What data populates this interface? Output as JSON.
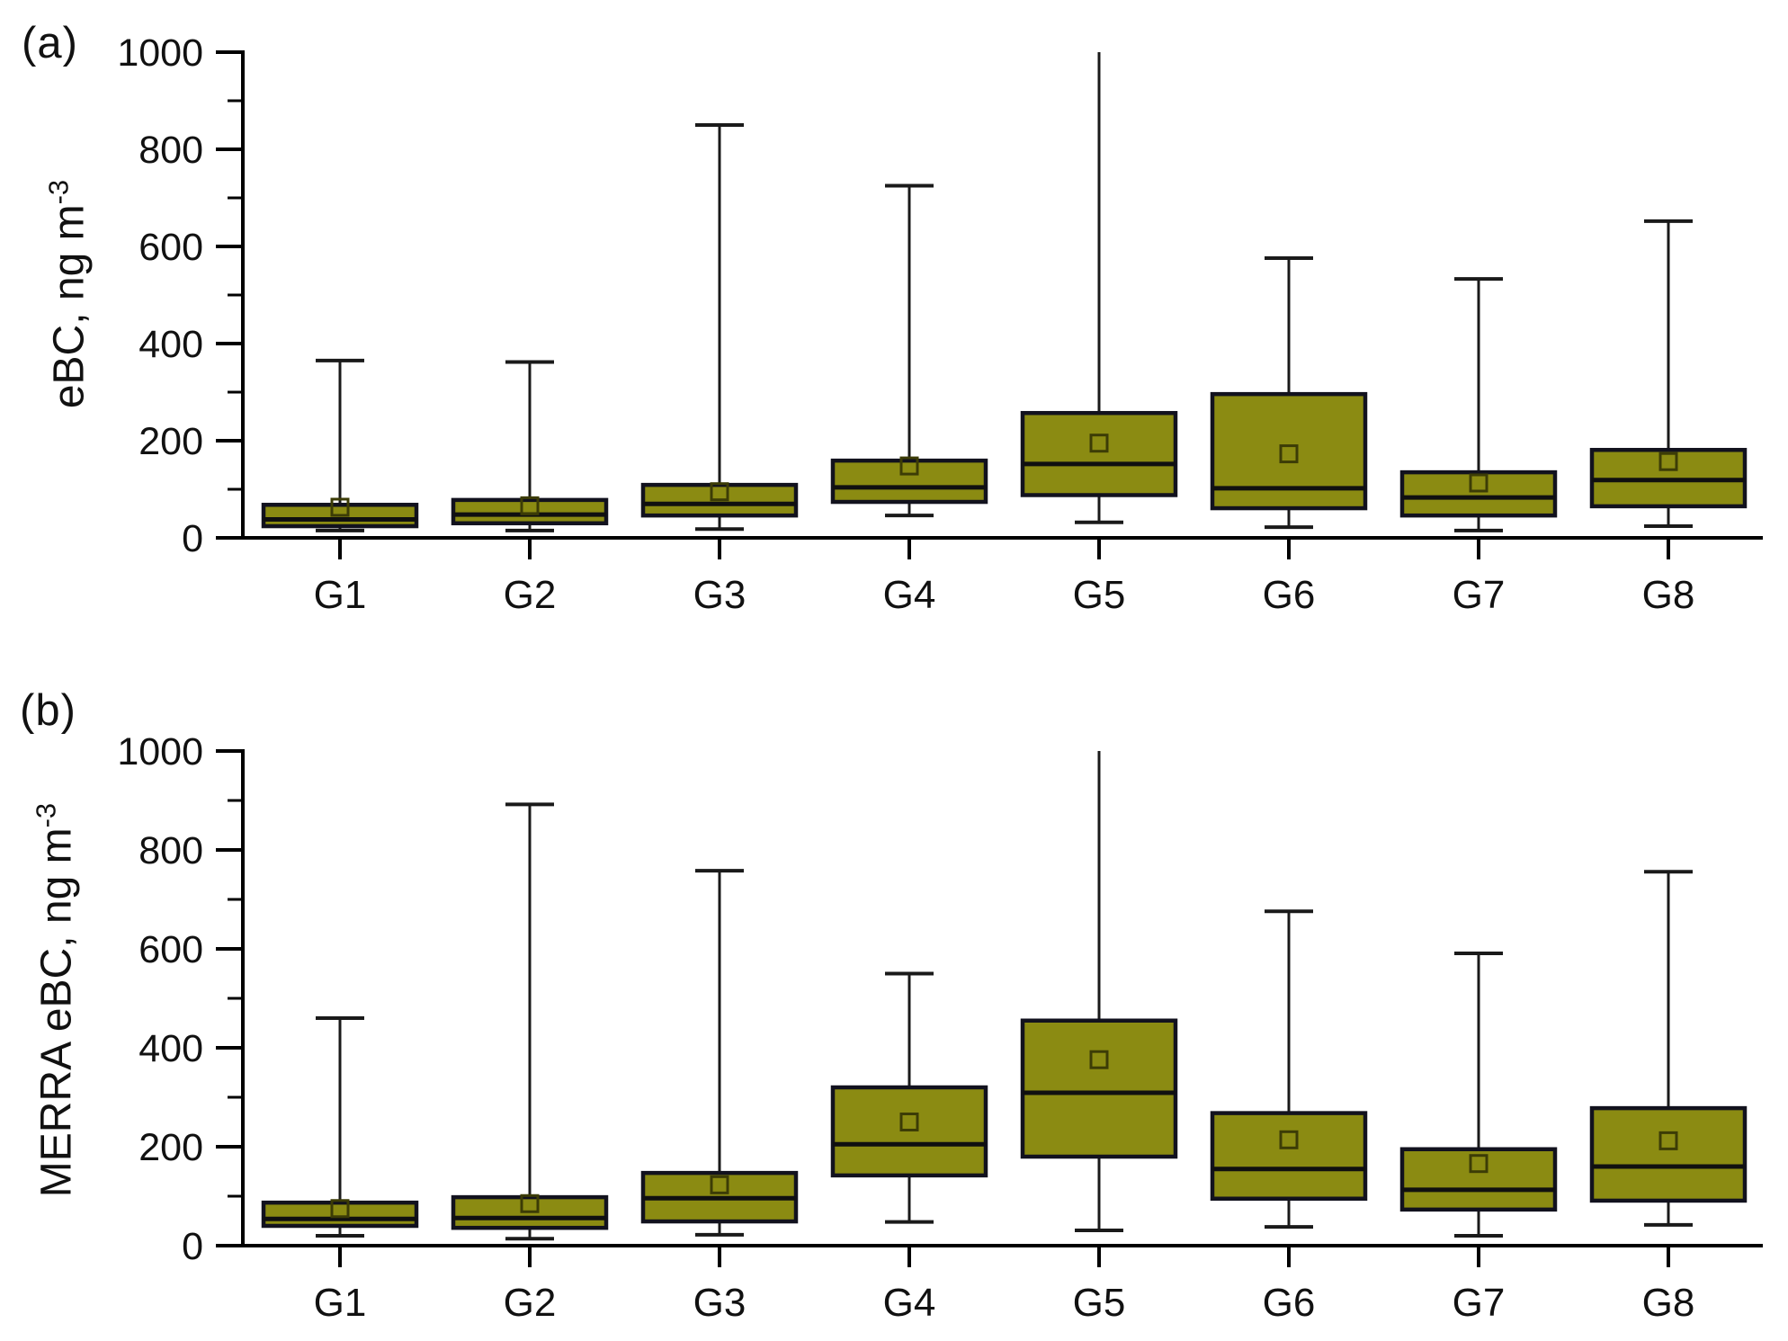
{
  "figure": {
    "background": "#ffffff",
    "panel_a_letter": "(a)",
    "panel_b_letter": "(b)"
  },
  "colors": {
    "box_fill": "#8b8b12",
    "box_stroke": "#12121e",
    "median_line": "#101010",
    "whisker": "#1a1a1a",
    "mean_marker_stroke": "#3c3c06",
    "axis": "#000000",
    "text": "#111111"
  },
  "chart_data": [
    {
      "type": "box",
      "panel": "a",
      "panel_label": "(a)",
      "ylabel": "eBC, ng m⁻³",
      "y_title_main": "eBC, ng m",
      "y_title_sup": "-3",
      "xlabel": "",
      "ylim": [
        0,
        1000
      ],
      "y_major_ticks": [
        0,
        200,
        400,
        600,
        800,
        1000
      ],
      "y_minor_step": 100,
      "grid": false,
      "legend": "none",
      "categories": [
        "G1",
        "G2",
        "G3",
        "G4",
        "G5",
        "G6",
        "G7",
        "G8"
      ],
      "boxes": [
        {
          "group": "G1",
          "whisker_low": 15,
          "q1": 24,
          "median": 38,
          "q3": 68,
          "whisker_high": 365,
          "mean": 63
        },
        {
          "group": "G2",
          "whisker_low": 15,
          "q1": 30,
          "median": 48,
          "q3": 78,
          "whisker_high": 362,
          "mean": 66
        },
        {
          "group": "G3",
          "whisker_low": 18,
          "q1": 46,
          "median": 70,
          "q3": 109,
          "whisker_high": 850,
          "mean": 95
        },
        {
          "group": "G4",
          "whisker_low": 46,
          "q1": 74,
          "median": 104,
          "q3": 159,
          "whisker_high": 725,
          "mean": 148
        },
        {
          "group": "G5",
          "whisker_low": 32,
          "q1": 88,
          "median": 152,
          "q3": 257,
          "whisker_high": 1000,
          "mean": 195
        },
        {
          "group": "G6",
          "whisker_low": 22,
          "q1": 61,
          "median": 102,
          "q3": 296,
          "whisker_high": 576,
          "mean": 173
        },
        {
          "group": "G7",
          "whisker_low": 15,
          "q1": 46,
          "median": 83,
          "q3": 135,
          "whisker_high": 533,
          "mean": 113
        },
        {
          "group": "G8",
          "whisker_low": 24,
          "q1": 65,
          "median": 119,
          "q3": 181,
          "whisker_high": 652,
          "mean": 157
        }
      ]
    },
    {
      "type": "box",
      "panel": "b",
      "panel_label": "(b)",
      "ylabel": "MERRA eBC, ng m⁻³",
      "y_title_main": "MERRA eBC, ng m",
      "y_title_sup": "-3",
      "xlabel": "",
      "ylim": [
        0,
        1000
      ],
      "y_major_ticks": [
        0,
        200,
        400,
        600,
        800,
        1000
      ],
      "y_minor_step": 100,
      "grid": false,
      "legend": "none",
      "categories": [
        "G1",
        "G2",
        "G3",
        "G4",
        "G5",
        "G6",
        "G7",
        "G8"
      ],
      "boxes": [
        {
          "group": "G1",
          "whisker_low": 20,
          "q1": 40,
          "median": 54,
          "q3": 87,
          "whisker_high": 460,
          "mean": 75
        },
        {
          "group": "G2",
          "whisker_low": 14,
          "q1": 36,
          "median": 56,
          "q3": 98,
          "whisker_high": 892,
          "mean": 85
        },
        {
          "group": "G3",
          "whisker_low": 22,
          "q1": 49,
          "median": 96,
          "q3": 147,
          "whisker_high": 758,
          "mean": 123
        },
        {
          "group": "G4",
          "whisker_low": 48,
          "q1": 142,
          "median": 205,
          "q3": 320,
          "whisker_high": 550,
          "mean": 250
        },
        {
          "group": "G5",
          "whisker_low": 31,
          "q1": 180,
          "median": 309,
          "q3": 455,
          "whisker_high": 1000,
          "mean": 376
        },
        {
          "group": "G6",
          "whisker_low": 38,
          "q1": 95,
          "median": 155,
          "q3": 268,
          "whisker_high": 676,
          "mean": 214
        },
        {
          "group": "G7",
          "whisker_low": 20,
          "q1": 73,
          "median": 113,
          "q3": 195,
          "whisker_high": 591,
          "mean": 166
        },
        {
          "group": "G8",
          "whisker_low": 42,
          "q1": 91,
          "median": 160,
          "q3": 278,
          "whisker_high": 756,
          "mean": 212
        }
      ]
    }
  ]
}
